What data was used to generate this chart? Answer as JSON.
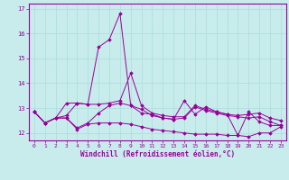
{
  "xlabel": "Windchill (Refroidissement éolien,°C)",
  "background_color": "#c8ecec",
  "grid_color": "#b0dede",
  "line_color": "#990099",
  "x": [
    0,
    1,
    2,
    3,
    4,
    5,
    6,
    7,
    8,
    9,
    10,
    11,
    12,
    13,
    14,
    15,
    16,
    17,
    18,
    19,
    20,
    21,
    22,
    23
  ],
  "series": [
    [
      12.85,
      12.4,
      12.6,
      13.2,
      13.2,
      13.15,
      15.45,
      15.75,
      16.8,
      13.1,
      12.8,
      12.75,
      12.6,
      12.55,
      13.3,
      12.75,
      13.05,
      12.85,
      12.75,
      11.9,
      12.85,
      12.45,
      12.3,
      12.3
    ],
    [
      12.85,
      12.4,
      12.6,
      12.7,
      13.2,
      13.15,
      13.15,
      13.2,
      13.3,
      14.4,
      13.1,
      12.8,
      12.7,
      12.65,
      12.65,
      13.1,
      12.95,
      12.85,
      12.75,
      12.7,
      12.75,
      12.8,
      12.6,
      12.5
    ],
    [
      12.85,
      12.4,
      12.6,
      12.6,
      12.2,
      12.4,
      12.8,
      13.1,
      13.2,
      13.1,
      12.95,
      12.7,
      12.6,
      12.55,
      12.6,
      13.05,
      12.9,
      12.8,
      12.7,
      12.65,
      12.6,
      12.65,
      12.45,
      12.3
    ],
    [
      12.85,
      12.4,
      12.6,
      12.6,
      12.15,
      12.35,
      12.4,
      12.4,
      12.4,
      12.35,
      12.25,
      12.15,
      12.1,
      12.05,
      12.0,
      11.95,
      11.95,
      11.95,
      11.9,
      11.9,
      11.85,
      12.0,
      12.0,
      12.25
    ]
  ],
  "ylim": [
    11.7,
    17.2
  ],
  "yticks": [
    12,
    13,
    14,
    15,
    16,
    17
  ],
  "xticks": [
    0,
    1,
    2,
    3,
    4,
    5,
    6,
    7,
    8,
    9,
    10,
    11,
    12,
    13,
    14,
    15,
    16,
    17,
    18,
    19,
    20,
    21,
    22,
    23
  ],
  "xlim": [
    -0.5,
    23.5
  ]
}
